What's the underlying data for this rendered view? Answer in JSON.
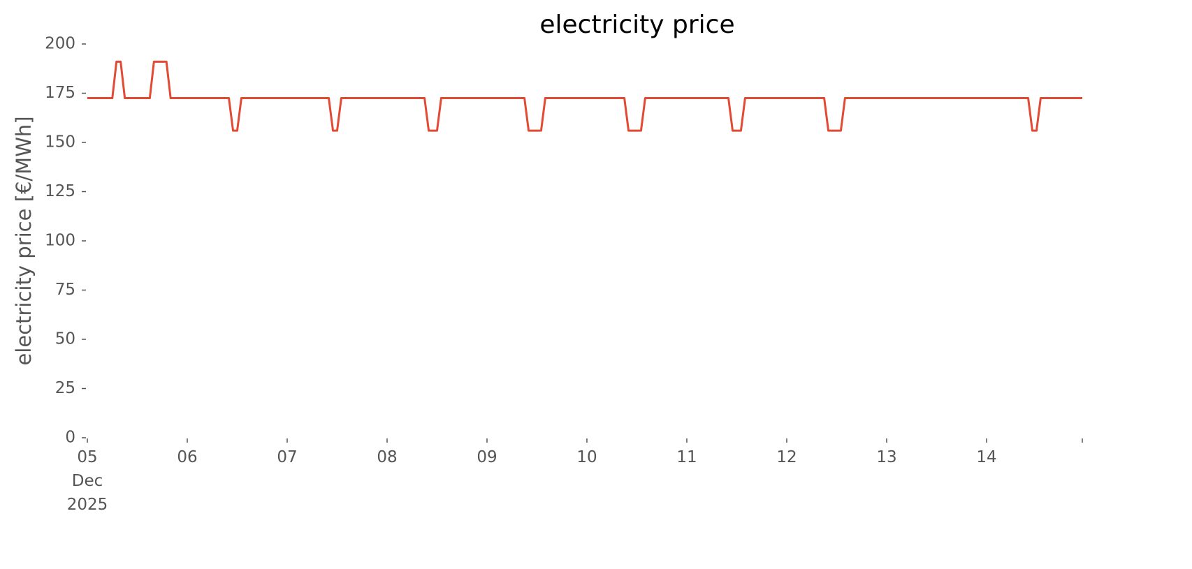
{
  "chart_data": {
    "type": "line",
    "title": "electricity price",
    "y_label": "electricity price [€/MWh]",
    "x": [
      "2025-12-05 00:00",
      "2025-12-05 06:00",
      "2025-12-05 07:00",
      "2025-12-05 08:00",
      "2025-12-05 09:00",
      "2025-12-05 15:00",
      "2025-12-05 16:00",
      "2025-12-05 19:00",
      "2025-12-05 20:00",
      "2025-12-06 10:00",
      "2025-12-06 11:00",
      "2025-12-06 12:00",
      "2025-12-06 13:00",
      "2025-12-07 10:00",
      "2025-12-07 11:00",
      "2025-12-07 12:00",
      "2025-12-07 13:00",
      "2025-12-08 09:00",
      "2025-12-08 10:00",
      "2025-12-08 12:00",
      "2025-12-08 13:00",
      "2025-12-09 09:00",
      "2025-12-09 10:00",
      "2025-12-09 13:00",
      "2025-12-09 14:00",
      "2025-12-10 09:00",
      "2025-12-10 10:00",
      "2025-12-10 13:00",
      "2025-12-10 14:00",
      "2025-12-11 10:00",
      "2025-12-11 11:00",
      "2025-12-11 13:00",
      "2025-12-11 14:00",
      "2025-12-12 09:00",
      "2025-12-12 10:00",
      "2025-12-12 13:00",
      "2025-12-12 14:00",
      "2025-12-14 10:00",
      "2025-12-14 11:00",
      "2025-12-14 12:00",
      "2025-12-14 13:00",
      "2025-12-14 23:00"
    ],
    "series": [
      {
        "name": "electricity price",
        "color": "#e24a33",
        "values": [
          172.5,
          172.5,
          191,
          191,
          172.5,
          172.5,
          191,
          191,
          172.5,
          172.5,
          156,
          156,
          172.5,
          172.5,
          156,
          156,
          172.5,
          172.5,
          156,
          156,
          172.5,
          172.5,
          156,
          156,
          172.5,
          172.5,
          156,
          156,
          172.5,
          172.5,
          156,
          156,
          172.5,
          172.5,
          156,
          156,
          172.5,
          172.5,
          156,
          156,
          172.5,
          172.5
        ]
      }
    ],
    "xlim": [
      "2025-12-05 00:00",
      "2025-12-14 23:00"
    ],
    "xticks": [
      {
        "value": "2025-12-05 00:00",
        "label": "05\nDec\n2025"
      },
      {
        "value": "2025-12-06 00:00",
        "label": "06"
      },
      {
        "value": "2025-12-07 00:00",
        "label": "07"
      },
      {
        "value": "2025-12-08 00:00",
        "label": "08"
      },
      {
        "value": "2025-12-09 00:00",
        "label": "09"
      },
      {
        "value": "2025-12-10 00:00",
        "label": "10"
      },
      {
        "value": "2025-12-11 00:00",
        "label": "11"
      },
      {
        "value": "2025-12-12 00:00",
        "label": "12"
      },
      {
        "value": "2025-12-13 00:00",
        "label": "13"
      },
      {
        "value": "2025-12-14 00:00",
        "label": "14"
      },
      {
        "value": "2025-12-14 23:00",
        "label": null
      }
    ],
    "ylim": [
      0,
      200
    ],
    "yticks": [
      0,
      25,
      50,
      75,
      100,
      125,
      150,
      175,
      200
    ],
    "grid": false
  }
}
